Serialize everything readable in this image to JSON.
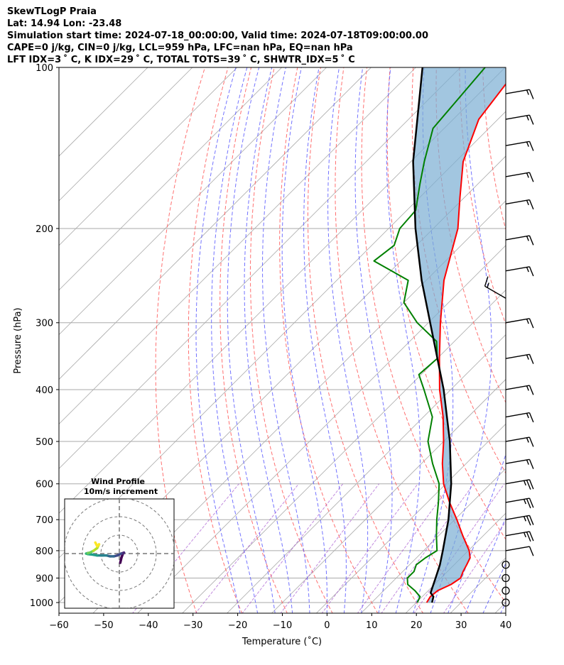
{
  "header": {
    "line1": "SkewTLogP Praia",
    "line2": "Lat: 14.94   Lon: -23.48",
    "line3": "Simulation start time: 2024-07-18_00:00:00, Valid time: 2024-07-18T09:00:00.00",
    "line4": "CAPE=0 j/kg, CIN=0 j/kg, LCL=959 hPa, LFC=nan hPa, EQ=nan hPa",
    "line5": "LFT IDX=3 ˚ C, K IDX=29 ˚ C, TOTAL TOTS=39 ˚ C, SHWTR_IDX=5 ˚ C"
  },
  "colors": {
    "temperature": "#ff0000",
    "dewpoint": "#008000",
    "parcel": "#000000",
    "cape_fill": "#7aaed3",
    "dry_adiabat": "#ff6060",
    "moist_adiabat": "#5a5aff",
    "mixing_ratio": "#9a40c8",
    "isotherm": "#aaaaaa"
  },
  "chart_data": {
    "type": "line",
    "subtype": "skew-t log-p",
    "xlabel": "Temperature (˚C)",
    "ylabel": "Pressure (hPa)",
    "xlim": [
      -60,
      40
    ],
    "ylim": [
      1050,
      100
    ],
    "xticks": [
      -60,
      -50,
      -40,
      -30,
      -20,
      -10,
      0,
      10,
      20,
      30,
      40
    ],
    "xtick_labels": [
      "−60",
      "−50",
      "−40",
      "−30",
      "−20",
      "−10",
      "0",
      "10",
      "20",
      "30",
      "40"
    ],
    "yticks": [
      1000,
      900,
      800,
      700,
      600,
      500,
      400,
      300,
      200,
      100
    ],
    "ytick_labels": [
      "1000",
      "900",
      "800",
      "700",
      "600",
      "500",
      "400",
      "300",
      "200",
      "100"
    ],
    "series": [
      {
        "name": "temperature",
        "pressure": [
          1000,
          975,
          950,
          925,
          900,
          875,
          850,
          825,
          800,
          750,
          700,
          650,
          600,
          550,
          500,
          450,
          400,
          350,
          300,
          250,
          200,
          175,
          150,
          125,
          100
        ],
        "values": [
          22.3,
          21.8,
          22.1,
          23.7,
          24.4,
          23.5,
          22.8,
          22.0,
          20.2,
          15.4,
          10.5,
          5.0,
          -0.5,
          -5.3,
          -10.0,
          -15.6,
          -22.5,
          -29.5,
          -37.3,
          -46.0,
          -54.5,
          -61.0,
          -68.3,
          -74.3,
          -77.0
        ]
      },
      {
        "name": "dewpoint",
        "pressure": [
          1000,
          975,
          950,
          925,
          900,
          875,
          850,
          825,
          800,
          750,
          700,
          650,
          600,
          550,
          500,
          450,
          400,
          375,
          350,
          325,
          300,
          275,
          250,
          230,
          215,
          200,
          185,
          165,
          150,
          130,
          100
        ],
        "values": [
          20.2,
          19.5,
          17.0,
          14.0,
          12.5,
          12.5,
          11.5,
          12.0,
          13.0,
          9.5,
          6.0,
          2.5,
          -1.5,
          -7.5,
          -13.5,
          -18.0,
          -26.0,
          -30.5,
          -30.0,
          -34.0,
          -42.5,
          -50.0,
          -54.0,
          -66.0,
          -65.0,
          -67.5,
          -68.0,
          -73.0,
          -77.0,
          -82.5,
          -84.5
        ]
      },
      {
        "name": "parcel",
        "pressure": [
          1000,
          975,
          959,
          900,
          850,
          800,
          700,
          600,
          500,
          400,
          300,
          250,
          200,
          150,
          100
        ],
        "values": [
          23.5,
          22.5,
          21.0,
          18.8,
          16.8,
          14.3,
          8.6,
          1.2,
          -8.6,
          -21.6,
          -39.6,
          -51.0,
          -64.0,
          -79.5,
          -98.5
        ]
      }
    ],
    "wind_barbs": {
      "pressure": [
        1000,
        950,
        900,
        850,
        800,
        750,
        700,
        650,
        600,
        550,
        500,
        450,
        400,
        350,
        300,
        270,
        240,
        210,
        180,
        160,
        140,
        125,
        112
      ],
      "speed_knots": [
        5,
        5,
        5,
        5,
        10,
        25,
        25,
        25,
        25,
        15,
        15,
        15,
        15,
        15,
        15,
        15,
        15,
        15,
        15,
        15,
        15,
        15,
        15
      ],
      "direction_deg": [
        270,
        270,
        270,
        270,
        80,
        80,
        80,
        80,
        80,
        80,
        80,
        80,
        80,
        80,
        80,
        300,
        80,
        80,
        80,
        80,
        80,
        80,
        80
      ]
    },
    "hodograph": {
      "title": "Wind Profile",
      "subtitle": "10m/s increment",
      "u": [
        0.5,
        1.2,
        2.0,
        2.5,
        1.0,
        -1.0,
        -3.0,
        -5.0,
        -7.0,
        -9.0,
        -12.0,
        -15.0,
        -17.0,
        -18.0,
        -17.0,
        -16.0,
        -14.0,
        -12.0,
        -11.0,
        -12.0,
        -13.0
      ],
      "v": [
        -5.0,
        -2.0,
        0.0,
        0.5,
        0.0,
        -1.0,
        -1.5,
        -1.5,
        -1.0,
        -1.0,
        -1.0,
        -0.5,
        -0.3,
        0.0,
        0.3,
        0.5,
        1.5,
        3.0,
        5.0,
        4.0,
        6.0
      ]
    }
  }
}
